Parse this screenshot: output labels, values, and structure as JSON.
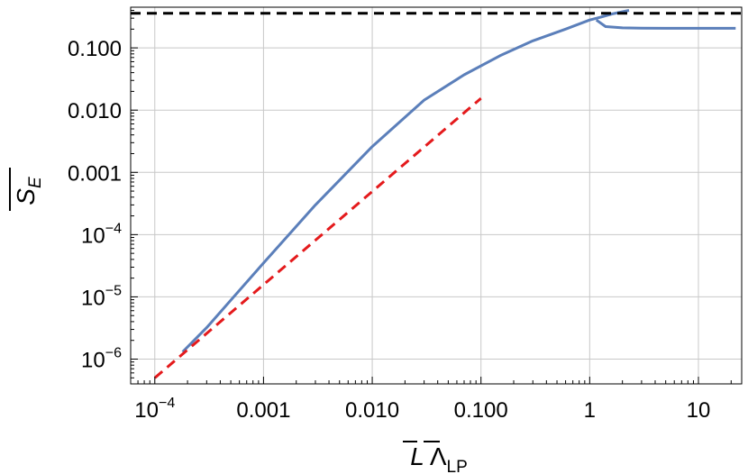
{
  "chart_data": {
    "type": "line",
    "title": "",
    "xlabel": {
      "parts": [
        "L",
        "Λ",
        "LP"
      ],
      "overbar": [
        "L",
        "Λ"
      ],
      "subscript": "LP"
    },
    "ylabel": {
      "base": "S",
      "subscript": "E",
      "overbar": true
    },
    "x_scale": "log",
    "y_scale": "log",
    "xlim": [
      6e-05,
      25
    ],
    "ylim": [
      4e-07,
      0.45
    ],
    "grid": true,
    "legend": "none",
    "x_ticks": [
      {
        "value": 0.0001,
        "label": "10",
        "exp": "−4"
      },
      {
        "value": 0.001,
        "label": "0.001",
        "exp": ""
      },
      {
        "value": 0.01,
        "label": "0.010",
        "exp": ""
      },
      {
        "value": 0.1,
        "label": "0.100",
        "exp": ""
      },
      {
        "value": 1,
        "label": "1",
        "exp": ""
      },
      {
        "value": 10,
        "label": "10",
        "exp": ""
      }
    ],
    "y_ticks": [
      {
        "value": 1e-06,
        "label": "10",
        "exp": "−6"
      },
      {
        "value": 1e-05,
        "label": "10",
        "exp": "−5"
      },
      {
        "value": 0.0001,
        "label": "10",
        "exp": "−4"
      },
      {
        "value": 0.001,
        "label": "0.001",
        "exp": ""
      },
      {
        "value": 0.01,
        "label": "0.010",
        "exp": ""
      },
      {
        "value": 0.1,
        "label": "0.100",
        "exp": ""
      }
    ],
    "colors": {
      "blue": "#5b7fba",
      "red": "#e41a1c",
      "black": "#000000",
      "grid": "#c8c8c8"
    },
    "series": [
      {
        "style": "solid",
        "color": "#5b7fba",
        "x": [
          0.00018,
          0.0003,
          0.001,
          0.003,
          0.01,
          0.03,
          0.07,
          0.15,
          0.3,
          0.6,
          1.0,
          1.25,
          1.6,
          2.3
        ],
        "y": [
          1.3e-06,
          3.2e-06,
          3.5e-05,
          0.0003,
          0.0026,
          0.0145,
          0.037,
          0.075,
          0.13,
          0.2,
          0.28,
          0.31,
          0.35,
          0.4
        ]
      },
      {
        "style": "solid",
        "color": "#5b7fba",
        "x": [
          1.15,
          1.4,
          2,
          3,
          5,
          10,
          22
        ],
        "y": [
          0.28,
          0.22,
          0.21,
          0.207,
          0.206,
          0.206,
          0.206
        ]
      },
      {
        "style": "dashed",
        "color": "#e41a1c",
        "x": [
          0.0001,
          0.1
        ],
        "y": [
          5e-07,
          0.0155
        ]
      },
      {
        "style": "dashed",
        "color": "#000000",
        "x": [
          6e-05,
          25
        ],
        "y": [
          0.36,
          0.36
        ]
      }
    ]
  }
}
